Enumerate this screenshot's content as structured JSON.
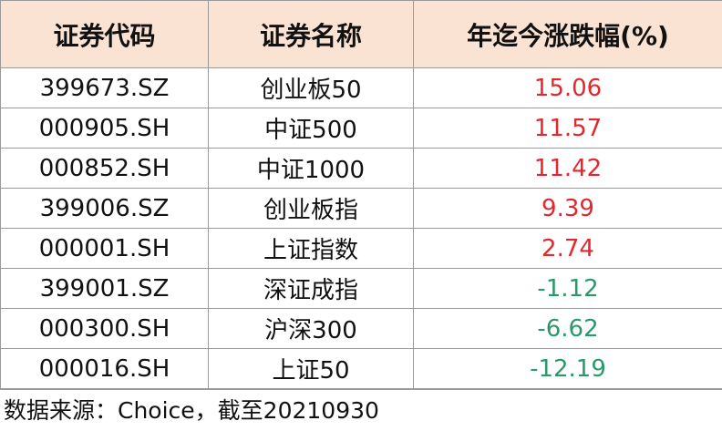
{
  "table": {
    "header": [
      "证券代码",
      "证券名称",
      "年迄今涨跌幅(%)"
    ],
    "rows": [
      [
        "399673.SZ",
        "创业板50",
        15.06
      ],
      [
        "000905.SH",
        "中证500",
        11.57
      ],
      [
        "000852.SH",
        "中证1000",
        11.42
      ],
      [
        "399006.SZ",
        "创业板指",
        9.39
      ],
      [
        "000001.SH",
        "上证指数",
        2.74
      ],
      [
        "399001.SZ",
        "深证成指",
        -1.12
      ],
      [
        "000300.SH",
        "沪深300",
        -6.62
      ],
      [
        "000016.SH",
        "上证50",
        -12.19
      ]
    ],
    "up_color": "#e0282e",
    "down_color": "#2a9a6a"
  },
  "footer": "数据来源：Choice，截至20210930"
}
